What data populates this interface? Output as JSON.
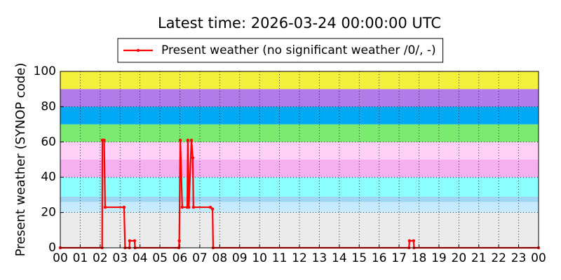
{
  "chart_data": {
    "type": "line",
    "title": "Latest time: 2026-03-24 00:00:00 UTC",
    "y_label": "Present weather (SYNOP code)",
    "xlim": [
      0,
      24
    ],
    "ylim": [
      0,
      100
    ],
    "xticks": [
      {
        "value": 0,
        "label": "00"
      },
      {
        "value": 1,
        "label": "01"
      },
      {
        "value": 2,
        "label": "02"
      },
      {
        "value": 3,
        "label": "03"
      },
      {
        "value": 4,
        "label": "04"
      },
      {
        "value": 5,
        "label": "05"
      },
      {
        "value": 6,
        "label": "06"
      },
      {
        "value": 7,
        "label": "07"
      },
      {
        "value": 8,
        "label": "08"
      },
      {
        "value": 9,
        "label": "09"
      },
      {
        "value": 10,
        "label": "10"
      },
      {
        "value": 11,
        "label": "11"
      },
      {
        "value": 12,
        "label": "12"
      },
      {
        "value": 13,
        "label": "13"
      },
      {
        "value": 14,
        "label": "14"
      },
      {
        "value": 15,
        "label": "15"
      },
      {
        "value": 16,
        "label": "16"
      },
      {
        "value": 17,
        "label": "17"
      },
      {
        "value": 18,
        "label": "18"
      },
      {
        "value": 19,
        "label": "19"
      },
      {
        "value": 20,
        "label": "20"
      },
      {
        "value": 21,
        "label": "21"
      },
      {
        "value": 22,
        "label": "22"
      },
      {
        "value": 23,
        "label": "23"
      },
      {
        "value": 24,
        "label": "00"
      }
    ],
    "yticks": [
      0,
      20,
      40,
      60,
      80,
      100
    ],
    "grid": true,
    "legend": "top",
    "bands": [
      {
        "from": 0,
        "to": 20,
        "color": "#ebebeb"
      },
      {
        "from": 20,
        "to": 26,
        "color": "#c6ebff"
      },
      {
        "from": 26,
        "to": 29,
        "color": "#9fd6f2"
      },
      {
        "from": 29,
        "to": 40,
        "color": "#8cffff"
      },
      {
        "from": 40,
        "to": 50,
        "color": "#f5b1ef"
      },
      {
        "from": 50,
        "to": 60,
        "color": "#ffd1f8"
      },
      {
        "from": 60,
        "to": 70,
        "color": "#7aeb6e"
      },
      {
        "from": 70,
        "to": 80,
        "color": "#00a9f5"
      },
      {
        "from": 80,
        "to": 90,
        "color": "#b27ce8"
      },
      {
        "from": 90,
        "to": 100,
        "color": "#f5f03c"
      }
    ],
    "x": [
      0,
      2.1,
      2.11,
      2.2,
      2.25,
      3.2,
      3.25,
      3.47,
      3.48,
      3.73,
      3.75,
      5.95,
      5.97,
      6.02,
      6.12,
      6.37,
      6.4,
      6.45,
      6.58,
      6.65,
      6.68,
      7.53,
      7.64,
      7.67,
      17.5,
      17.52,
      17.73,
      17.75,
      24
    ],
    "series": [
      {
        "name": "Present weather (no significant weather /0/, -)",
        "color": "#ff0000",
        "values": [
          0,
          0,
          61,
          61,
          23,
          23,
          0,
          0,
          4,
          4,
          0,
          0,
          4,
          61,
          23,
          23,
          61,
          23,
          61,
          51,
          23,
          23,
          22,
          0,
          0,
          4,
          4,
          0,
          0
        ]
      }
    ]
  }
}
